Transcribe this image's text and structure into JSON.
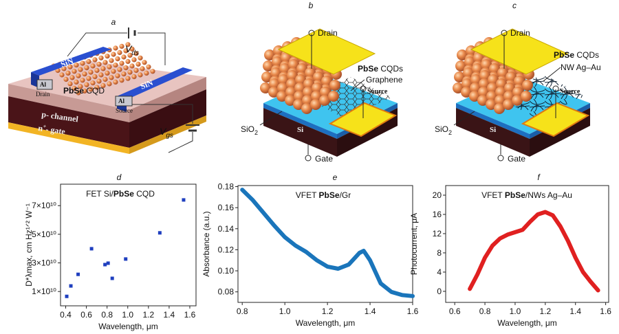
{
  "panel_labels": [
    "a",
    "b",
    "c",
    "d",
    "e",
    "f"
  ],
  "diagram_a": {
    "sin": [
      "SiN",
      "SiN"
    ],
    "drain": [
      "Al",
      "Drain"
    ],
    "source": [
      "Al",
      "Source"
    ],
    "material": [
      "PbSe",
      " CQD"
    ],
    "p_channel": "p- channel",
    "gate": [
      "n",
      "+",
      "- gate"
    ],
    "vds": [
      "V",
      "ds"
    ],
    "vgs": [
      "V",
      "gs"
    ]
  },
  "diagram_b": {
    "drain": "Drain",
    "material": [
      "PbSe",
      " CQDs"
    ],
    "graphene": "Graphene",
    "source": "Source",
    "sio2": [
      "SiO",
      "2"
    ],
    "si": "Si",
    "gate": "Gate"
  },
  "diagram_c": {
    "drain": "Drain",
    "material": [
      "PbSe",
      " CQDs"
    ],
    "nw": "NW Ag–Au",
    "source": "Source",
    "sio2": [
      "SiO",
      "2"
    ],
    "si": "Si",
    "gate": "Gate"
  },
  "chart_data": [
    {
      "type": "scatter",
      "title": [
        "FET Si/",
        "PbSe",
        " CQD"
      ],
      "xlabel": "Wavelength, μm",
      "ylabel": "D*λmax, cm Hz¹ᐟ² W⁻¹",
      "x": [
        0.41,
        0.45,
        0.52,
        0.65,
        0.78,
        0.81,
        0.85,
        0.98,
        1.31,
        1.54
      ],
      "values": [
        6600000000.0,
        13900000000.0,
        22000000000.0,
        39900000000.0,
        28800000000.0,
        29800000000.0,
        19200000000.0,
        32700000000.0,
        51000000000.0,
        74000000000.0
      ],
      "color": "#1f3fbf",
      "xlim": [
        0.35,
        1.66
      ],
      "ylim": [
        0,
        85000000000.0
      ],
      "xticks": [
        0.4,
        0.6,
        0.8,
        {
          "value": 1.0,
          "label": "1.0"
        },
        1.2,
        1.4,
        1.6
      ],
      "yticks": [
        {
          "value": 10000000000.0,
          "label": "1×10¹⁰"
        },
        {
          "value": 30000000000.0,
          "label": "3×10¹⁰"
        },
        {
          "value": 50000000000.0,
          "label": "5×10¹⁰"
        },
        {
          "value": 70000000000.0,
          "label": "7×10¹⁰"
        }
      ]
    },
    {
      "type": "line",
      "title": [
        "VFET ",
        "PbSe",
        "/Gr"
      ],
      "xlabel": "Wavelength, μm",
      "ylabel": "Absorbance (a.u.)",
      "x": [
        0.8,
        0.85,
        0.9,
        0.95,
        1.0,
        1.05,
        1.1,
        1.15,
        1.2,
        1.25,
        1.3,
        1.35,
        1.37,
        1.4,
        1.45,
        1.5,
        1.55,
        1.6
      ],
      "values": [
        0.177,
        0.167,
        0.155,
        0.143,
        0.132,
        0.124,
        0.118,
        0.11,
        0.104,
        0.102,
        0.106,
        0.117,
        0.119,
        0.11,
        0.088,
        0.08,
        0.077,
        0.076
      ],
      "color": "#1a75bb",
      "xlim": [
        0.78,
        1.6
      ],
      "ylim": [
        0.07,
        0.181
      ],
      "xticks": [
        0.8,
        {
          "value": 1.0,
          "label": "1.0"
        },
        1.2,
        1.4,
        1.6
      ],
      "yticks": [
        0.08,
        {
          "value": 0.1,
          "label": "0.10"
        },
        0.12,
        0.14,
        0.16,
        0.18
      ]
    },
    {
      "type": "line",
      "title": [
        "VFET ",
        "PbSe",
        "/NWs Ag–Au"
      ],
      "xlabel": "Wavelength, μm",
      "ylabel": "Photocurrent, μA",
      "x": [
        0.7,
        0.75,
        0.8,
        0.85,
        0.9,
        0.95,
        1.0,
        1.05,
        1.1,
        1.15,
        1.2,
        1.25,
        1.3,
        1.35,
        1.4,
        1.45,
        1.5,
        1.55
      ],
      "values": [
        0.5,
        3.5,
        7,
        9.5,
        11,
        11.8,
        12.3,
        12.8,
        14.5,
        16,
        16.5,
        15.8,
        13.5,
        10.5,
        7,
        4,
        2,
        0.2
      ],
      "color": "#e02020",
      "xlim": [
        0.54,
        1.62
      ],
      "ylim": [
        -2.3,
        22
      ],
      "xticks": [
        0.6,
        0.8,
        {
          "value": 1.0,
          "label": "1.0"
        },
        1.2,
        1.4,
        1.6
      ],
      "yticks": [
        0,
        4,
        8,
        12,
        16,
        20
      ]
    }
  ]
}
